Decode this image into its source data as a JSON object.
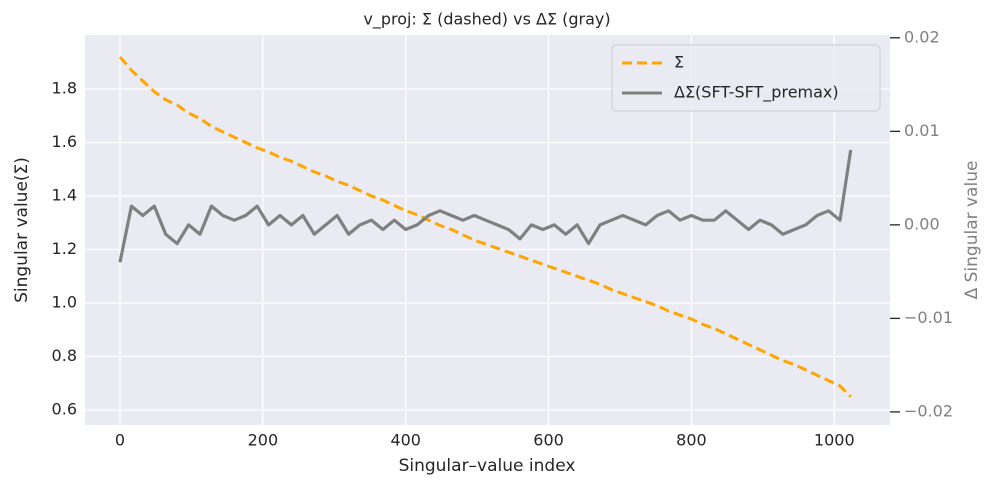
{
  "chart_data": {
    "type": "line",
    "title": "v_proj: Σ (dashed) vs ΔΣ (gray)",
    "xlabel": "Singular–value index",
    "ylabel": "Singular value(Σ)",
    "y2label": "Δ Singular value",
    "x": [
      0,
      16,
      32,
      48,
      64,
      80,
      96,
      112,
      128,
      144,
      160,
      176,
      192,
      208,
      224,
      240,
      256,
      272,
      288,
      304,
      320,
      336,
      352,
      368,
      384,
      400,
      416,
      432,
      448,
      464,
      480,
      496,
      512,
      528,
      544,
      560,
      576,
      592,
      608,
      624,
      640,
      656,
      672,
      688,
      704,
      720,
      736,
      752,
      768,
      784,
      800,
      816,
      832,
      848,
      864,
      880,
      896,
      912,
      928,
      944,
      960,
      976,
      992,
      1008,
      1023
    ],
    "series": [
      {
        "name": "Σ",
        "color": "#ffa500",
        "dashed": true,
        "axis": "y",
        "values": [
          1.92,
          1.87,
          1.83,
          1.79,
          1.76,
          1.74,
          1.71,
          1.69,
          1.66,
          1.64,
          1.62,
          1.6,
          1.58,
          1.565,
          1.545,
          1.53,
          1.51,
          1.49,
          1.475,
          1.455,
          1.44,
          1.42,
          1.4,
          1.385,
          1.365,
          1.345,
          1.33,
          1.31,
          1.29,
          1.275,
          1.255,
          1.235,
          1.22,
          1.205,
          1.19,
          1.175,
          1.16,
          1.145,
          1.13,
          1.115,
          1.1,
          1.085,
          1.07,
          1.05,
          1.035,
          1.02,
          1.005,
          0.99,
          0.97,
          0.955,
          0.94,
          0.92,
          0.905,
          0.885,
          0.865,
          0.845,
          0.825,
          0.805,
          0.785,
          0.77,
          0.75,
          0.73,
          0.71,
          0.69,
          0.65
        ]
      },
      {
        "name": "ΔΣ(SFT-SFT_premax)",
        "color": "#808080",
        "dashed": false,
        "axis": "y2",
        "values": [
          -0.004,
          0.002,
          0.001,
          0.002,
          -0.001,
          -0.002,
          0.0,
          -0.001,
          0.002,
          0.001,
          0.0005,
          0.001,
          0.002,
          0.0,
          0.001,
          0.0,
          0.001,
          -0.001,
          0.0,
          0.001,
          -0.001,
          0.0,
          0.0005,
          -0.0005,
          0.0005,
          -0.0005,
          0.0,
          0.001,
          0.0015,
          0.001,
          0.0005,
          0.001,
          0.0005,
          0.0,
          -0.0005,
          -0.0015,
          0.0,
          -0.0005,
          0.0,
          -0.001,
          0.0,
          -0.002,
          0.0,
          0.0005,
          0.001,
          0.0005,
          0.0,
          0.001,
          0.0015,
          0.0005,
          0.001,
          0.0005,
          0.0005,
          0.0015,
          0.0005,
          -0.0005,
          0.0005,
          0.0,
          -0.001,
          -0.0005,
          0.0,
          0.001,
          0.0015,
          0.0005,
          0.008
        ]
      }
    ],
    "xlim": [
      -49,
      1078
    ],
    "xticks": [
      0,
      200,
      400,
      600,
      800,
      1000
    ],
    "ylim": [
      0.544,
      2.002
    ],
    "yticks": [
      0.6,
      0.8,
      {
        "value": 1.0,
        "label": "1.0"
      },
      1.2,
      1.4,
      1.6,
      1.8
    ],
    "y2lim": [
      -0.0214,
      0.0203
    ],
    "y2ticks": [
      {
        "value": -0.02,
        "label": "−0.02"
      },
      {
        "value": -0.01,
        "label": "−0.01"
      },
      {
        "value": 0,
        "label": "0.00"
      },
      0.01,
      0.02
    ],
    "grid": true,
    "legend": "upper right"
  }
}
